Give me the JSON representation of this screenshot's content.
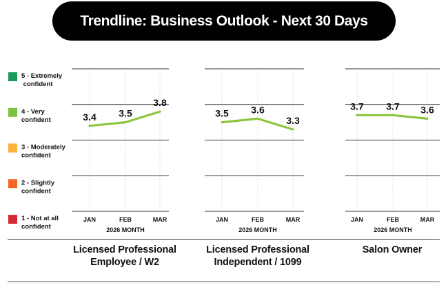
{
  "title": "Trendline: Business Outlook - Next 30 Days",
  "legend": [
    {
      "level": 5,
      "lines": [
        "5 - Extremely",
        " confident"
      ],
      "color": "#1e9a5a"
    },
    {
      "level": 4,
      "lines": [
        "4 - Very",
        "confident"
      ],
      "color": "#7dc142"
    },
    {
      "level": 3,
      "lines": [
        "3 - Moderately",
        "confident"
      ],
      "color": "#fbb03b"
    },
    {
      "level": 2,
      "lines": [
        "2 - Slightly",
        "confident"
      ],
      "color": "#f26522"
    },
    {
      "level": 1,
      "lines": [
        "1 - Not at all",
        "confident"
      ],
      "color": "#d42a36"
    }
  ],
  "line_color": "#8cc63f",
  "chart_data": [
    {
      "type": "line",
      "title": "Licensed Professional Employee / W2",
      "title_lines": [
        "Licensed Professional",
        "Employee / W2"
      ],
      "categories": [
        "JAN",
        "FEB",
        "MAR"
      ],
      "xlabel": "2026 MONTH",
      "values": [
        3.4,
        3.5,
        3.8
      ],
      "value_labels": [
        "3.4",
        "3.5",
        "3.8"
      ],
      "ylim": [
        1,
        5
      ],
      "grid": true
    },
    {
      "type": "line",
      "title": "Licensed Professional Independent / 1099",
      "title_lines": [
        "Licensed Professional",
        "Independent / 1099"
      ],
      "categories": [
        "JAN",
        "FEB",
        "MAR"
      ],
      "xlabel": "2026 MONTH",
      "values": [
        3.5,
        3.6,
        3.3
      ],
      "value_labels": [
        "3.5",
        "3.6",
        "3.3"
      ],
      "ylim": [
        1,
        5
      ],
      "grid": true
    },
    {
      "type": "line",
      "title": "Salon Owner",
      "title_lines": [
        "Salon Owner"
      ],
      "categories": [
        "JAN",
        "FEB",
        "MAR"
      ],
      "xlabel": "2026 MONTH",
      "values": [
        3.7,
        3.7,
        3.6
      ],
      "value_labels": [
        "3.7",
        "3.7",
        "3.6"
      ],
      "ylim": [
        1,
        5
      ],
      "grid": true
    }
  ]
}
